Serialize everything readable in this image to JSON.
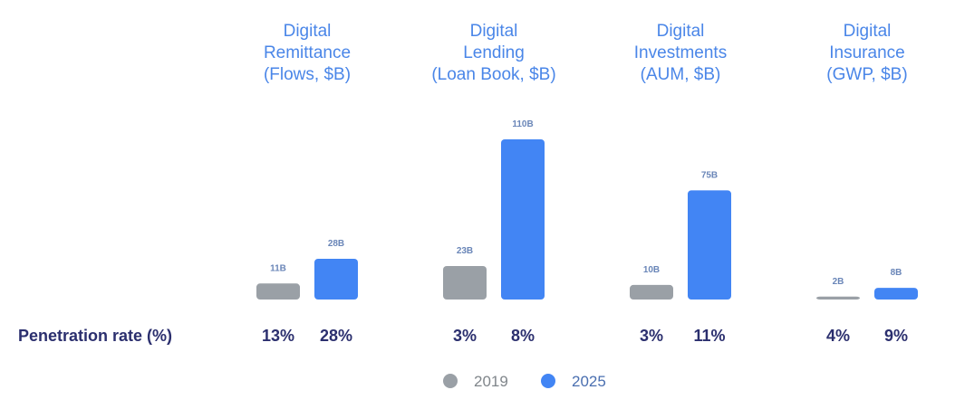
{
  "chart_data": {
    "type": "bar",
    "categories": [
      {
        "title": [
          "Digital",
          "Remittance",
          "(Flows, $B)"
        ]
      },
      {
        "title": [
          "Digital",
          "Lending",
          "(Loan Book, $B)"
        ]
      },
      {
        "title": [
          "Digital",
          "Investments",
          "(AUM, $B)"
        ]
      },
      {
        "title": [
          "Digital",
          "Insurance",
          "(GWP, $B)"
        ]
      }
    ],
    "series": [
      {
        "name": "2019",
        "color": "#9aa0a6",
        "values": [
          11,
          23,
          10,
          2
        ],
        "labels": [
          "11B",
          "23B",
          "10B",
          "2B"
        ],
        "penetration": [
          "13%",
          "3%",
          "3%",
          "4%"
        ]
      },
      {
        "name": "2025",
        "color": "#4285f4",
        "values": [
          28,
          110,
          75,
          8
        ],
        "labels": [
          "28B",
          "110B",
          "75B",
          "8B"
        ],
        "penetration": [
          "28%",
          "8%",
          "11%",
          "9%"
        ]
      }
    ],
    "penetration_label": "Penetration rate (%)",
    "unit": "$B",
    "legend": "bottom-center",
    "grid": false
  }
}
